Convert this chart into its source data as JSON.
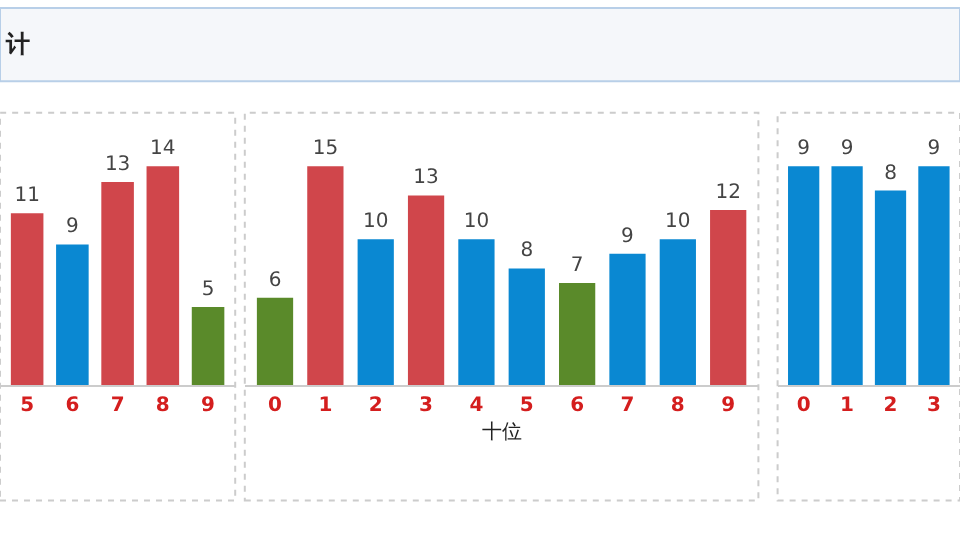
{
  "chart_data": [
    {
      "type": "bar",
      "title": "计",
      "categories": [
        "5",
        "6",
        "7",
        "8",
        "9"
      ],
      "values": [
        11,
        9,
        13,
        14,
        5
      ],
      "colors": [
        "#d0464b",
        "#0a88d2",
        "#d0464b",
        "#d0464b",
        "#5a8a2a"
      ],
      "data_labels": true
    },
    {
      "type": "bar",
      "xlabel": "十位",
      "categories": [
        "0",
        "1",
        "2",
        "3",
        "4",
        "5",
        "6",
        "7",
        "8",
        "9"
      ],
      "values": [
        6,
        15,
        10,
        13,
        10,
        8,
        7,
        9,
        10,
        12
      ],
      "colors": [
        "#5a8a2a",
        "#d0464b",
        "#0a88d2",
        "#d0464b",
        "#0a88d2",
        "#0a88d2",
        "#5a8a2a",
        "#0a88d2",
        "#0a88d2",
        "#d0464b"
      ],
      "data_labels": true
    },
    {
      "type": "bar",
      "categories": [
        "0",
        "1",
        "2",
        "3"
      ],
      "values": [
        9,
        9,
        8,
        9
      ],
      "colors": [
        "#0a88d2",
        "#0a88d2",
        "#0a88d2",
        "#0a88d2"
      ],
      "data_labels": true
    }
  ]
}
